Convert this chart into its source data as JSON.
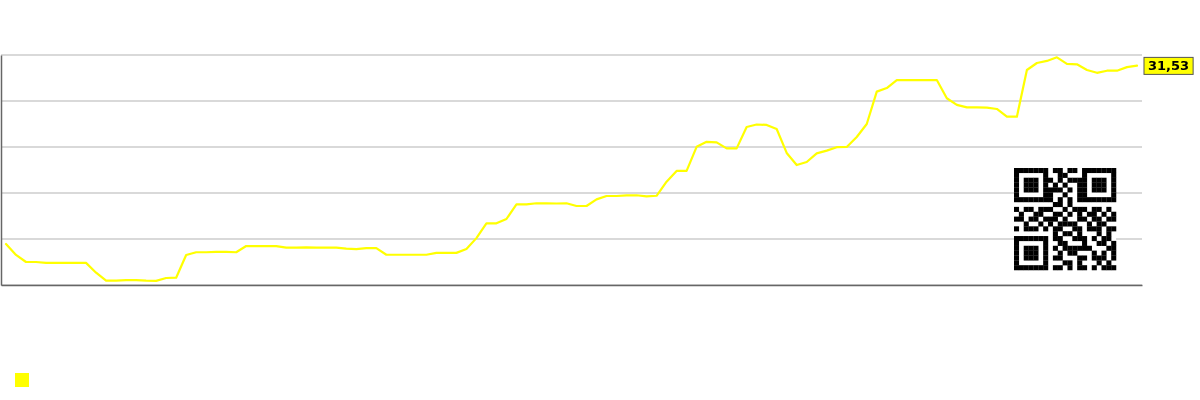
{
  "chart_data": {
    "type": "line",
    "grid": "y",
    "ylim": [
      0,
      33.07
    ],
    "categories": [
      null,
      null,
      null,
      null,
      null,
      null,
      null,
      null,
      null,
      null,
      null,
      null,
      null,
      null,
      null,
      null,
      null,
      null,
      null,
      null,
      null,
      null,
      null,
      null,
      null,
      null,
      null,
      null,
      null,
      null,
      null,
      null,
      null,
      null,
      null,
      null,
      null,
      null,
      null,
      null,
      null,
      null,
      null,
      null,
      null,
      null,
      null,
      null,
      null,
      null,
      null,
      null,
      null,
      null,
      null,
      null,
      null,
      null,
      null,
      null,
      null,
      null,
      null,
      null,
      null,
      null,
      null,
      null,
      null,
      null,
      null,
      null,
      null,
      null,
      null,
      null,
      null,
      null,
      null,
      null,
      null,
      null,
      null,
      null,
      null,
      null,
      null,
      null,
      null,
      null,
      null,
      null,
      null,
      null,
      null,
      null,
      null,
      null,
      null,
      null,
      null,
      null,
      null,
      null,
      null,
      null,
      null,
      null,
      null,
      null,
      null,
      null,
      null,
      null
    ],
    "series": [
      {
        "color": "#ffff00",
        "values": [
          5.89,
          4.32,
          3.31,
          3.31,
          3.18,
          3.18,
          3.18,
          3.18,
          3.18,
          1.77,
          0.62,
          0.62,
          0.69,
          0.69,
          0.62,
          0.59,
          1.01,
          1.05,
          4.32,
          4.71,
          4.71,
          4.75,
          4.75,
          4.71,
          5.6,
          5.6,
          5.6,
          5.6,
          5.37,
          5.37,
          5.4,
          5.37,
          5.37,
          5.37,
          5.24,
          5.17,
          5.3,
          5.3,
          4.35,
          4.35,
          4.35,
          4.35,
          4.35,
          4.62,
          4.62,
          4.62,
          5.17,
          6.74,
          8.87,
          8.87,
          9.49,
          11.59,
          11.59,
          11.75,
          11.75,
          11.72,
          11.75,
          11.36,
          11.36,
          12.31,
          12.8,
          12.8,
          12.9,
          12.9,
          12.74,
          12.83,
          14.86,
          16.4,
          16.4,
          19.87,
          20.59,
          20.5,
          19.64,
          19.64,
          22.72,
          23.08,
          23.02,
          22.43,
          18.99,
          17.25,
          17.68,
          18.92,
          19.32,
          19.81,
          19.84,
          21.28,
          23.15,
          27.8,
          28.32,
          29.47,
          29.47,
          29.47,
          29.47,
          29.47,
          26.85,
          25.9,
          25.54,
          25.54,
          25.51,
          25.31,
          24.2,
          24.2,
          30.91,
          31.92,
          32.22,
          32.74,
          31.79,
          31.73,
          30.91,
          30.51,
          30.81,
          30.81,
          31.33,
          31.53
        ],
        "value_labels": [
          null,
          null,
          null,
          null,
          null,
          null,
          null,
          null,
          null,
          null,
          null,
          null,
          null,
          null,
          null,
          null,
          null,
          null,
          null,
          null,
          null,
          null,
          null,
          null,
          null,
          null,
          null,
          null,
          null,
          null,
          null,
          null,
          null,
          null,
          null,
          null,
          null,
          null,
          null,
          null,
          null,
          null,
          null,
          null,
          null,
          null,
          null,
          null,
          null,
          null,
          null,
          null,
          null,
          null,
          null,
          null,
          null,
          null,
          null,
          null,
          null,
          null,
          null,
          null,
          null,
          null,
          null,
          null,
          null,
          null,
          null,
          null,
          null,
          null,
          null,
          null,
          null,
          null,
          null,
          null,
          null,
          null,
          null,
          null,
          null,
          null,
          null,
          null,
          null,
          null,
          null,
          null,
          null,
          null,
          null,
          null,
          null,
          null,
          null,
          null,
          null,
          null,
          null,
          null,
          null,
          null,
          null,
          null,
          null,
          null,
          null,
          null,
          null,
          "31,53"
        ]
      }
    ]
  }
}
